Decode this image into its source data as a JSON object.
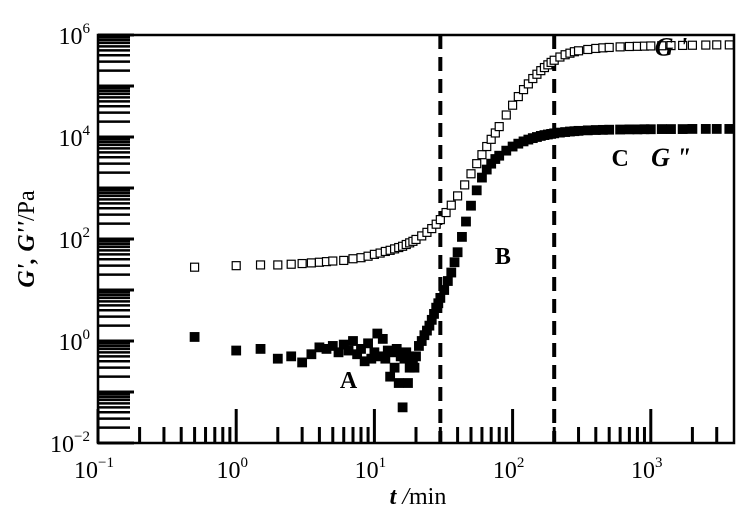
{
  "chart_data": {
    "type": "scatter",
    "xscale": "log",
    "yscale": "log",
    "xlim": [
      0.1,
      4000
    ],
    "ylim": [
      0.01,
      1000000
    ],
    "xlabel": {
      "var": "t",
      "sep": " /",
      "unit": "min"
    },
    "ylabel": {
      "var": "G', G''",
      "unit": "/Pa"
    },
    "x_ticks": [
      {
        "base": "10",
        "exp": "−1",
        "value": 0.1
      },
      {
        "base": "10",
        "exp": "0",
        "value": 1
      },
      {
        "base": "10",
        "exp": "1",
        "value": 10
      },
      {
        "base": "10",
        "exp": "2",
        "value": 100
      },
      {
        "base": "10",
        "exp": "3",
        "value": 1000
      }
    ],
    "y_ticks": [
      {
        "base": "10",
        "exp": "−2",
        "value": 0.01
      },
      {
        "base": "10",
        "exp": "0",
        "value": 1
      },
      {
        "base": "10",
        "exp": "2",
        "value": 100
      },
      {
        "base": "10",
        "exp": "4",
        "value": 10000
      },
      {
        "base": "10",
        "exp": "6",
        "value": 1000000
      }
    ],
    "vlines": [
      30,
      200
    ],
    "annotations": [
      {
        "text": "A",
        "x": 6.5,
        "y": 0.12
      },
      {
        "text": "B",
        "x": 85,
        "y": 32
      },
      {
        "text": "C",
        "x": 600,
        "y": 2700
      }
    ],
    "series": [
      {
        "name": "G '",
        "marker": "open-square",
        "x": [
          0.5,
          1,
          1.5,
          2,
          2.5,
          3,
          3.5,
          4,
          4.5,
          5,
          6,
          7,
          8,
          9,
          10,
          11,
          12,
          13,
          14,
          15,
          16,
          17,
          18,
          19,
          20,
          22,
          24,
          26,
          28,
          30,
          33,
          36,
          40,
          45,
          50,
          55,
          60,
          65,
          70,
          75,
          80,
          90,
          100,
          110,
          120,
          130,
          140,
          150,
          160,
          170,
          180,
          190,
          200,
          220,
          240,
          260,
          280,
          300,
          350,
          400,
          450,
          500,
          600,
          700,
          800,
          900,
          1000,
          1200,
          1400,
          1700,
          2000,
          2500,
          3000,
          3700
        ],
        "values": [
          28,
          30,
          31,
          31,
          32,
          33,
          34,
          35,
          36,
          37,
          38,
          41,
          43,
          46,
          50,
          53,
          57,
          60,
          64,
          68,
          72,
          78,
          84,
          90,
          98,
          115,
          135,
          160,
          195,
          240,
          330,
          460,
          700,
          1150,
          1900,
          3000,
          4500,
          6500,
          9000,
          12000,
          16000,
          27000,
          42000,
          62000,
          85000,
          110000,
          140000,
          170000,
          200000,
          230000,
          260000,
          290000,
          320000,
          370000,
          410000,
          440000,
          470000,
          490000,
          520000,
          545000,
          560000,
          570000,
          585000,
          595000,
          600000,
          605000,
          610000,
          615000,
          620000,
          625000,
          630000,
          635000,
          640000,
          640000
        ]
      },
      {
        "name": "G \"",
        "marker": "filled-square",
        "x": [
          0.5,
          1,
          1.5,
          2,
          2.5,
          3,
          3.5,
          4,
          4.5,
          5,
          5.5,
          6,
          6.5,
          7,
          7.5,
          8,
          8.5,
          9,
          9.5,
          10,
          10.5,
          11,
          11.5,
          12,
          12.5,
          13,
          13.5,
          14,
          14.5,
          15,
          15.5,
          16,
          16.5,
          17,
          17.5,
          18,
          18.5,
          19,
          19.5,
          20,
          21,
          22,
          23,
          24,
          25,
          26,
          27,
          28,
          29,
          30,
          32,
          34,
          36,
          38,
          40,
          43,
          46,
          50,
          55,
          60,
          65,
          70,
          75,
          80,
          90,
          100,
          110,
          120,
          130,
          140,
          150,
          160,
          170,
          180,
          190,
          200,
          220,
          240,
          260,
          280,
          300,
          350,
          400,
          450,
          500,
          600,
          700,
          800,
          900,
          1000,
          1200,
          1400,
          1700,
          2000,
          2500,
          3000,
          3700
        ],
        "values": [
          1.2,
          0.65,
          0.7,
          0.45,
          0.5,
          0.38,
          0.55,
          0.75,
          0.7,
          0.8,
          0.6,
          0.85,
          0.65,
          1.0,
          0.55,
          0.7,
          0.4,
          0.9,
          0.45,
          0.6,
          1.4,
          0.5,
          1.1,
          0.45,
          0.65,
          0.2,
          0.6,
          0.3,
          0.7,
          0.15,
          0.5,
          0.05,
          0.45,
          0.6,
          0.15,
          0.3,
          0.5,
          0.4,
          0.3,
          0.5,
          0.8,
          1.0,
          1.3,
          1.6,
          2.0,
          2.6,
          3.4,
          4.5,
          5.5,
          7,
          10,
          15,
          22,
          35,
          55,
          110,
          220,
          450,
          900,
          1600,
          2300,
          3000,
          3700,
          4300,
          5400,
          6500,
          7400,
          8200,
          8900,
          9500,
          10000,
          10500,
          10900,
          11200,
          11500,
          11800,
          12200,
          12500,
          12800,
          13000,
          13200,
          13500,
          13700,
          13800,
          13900,
          14000,
          14100,
          14100,
          14200,
          14200,
          14300,
          14300,
          14300,
          14400,
          14400,
          14400,
          14400
        ]
      }
    ],
    "series_labels": [
      {
        "text": "G '",
        "x": 1400,
        "y": 400000
      },
      {
        "text": "G \"",
        "x": 1400,
        "y": 2700
      }
    ]
  }
}
